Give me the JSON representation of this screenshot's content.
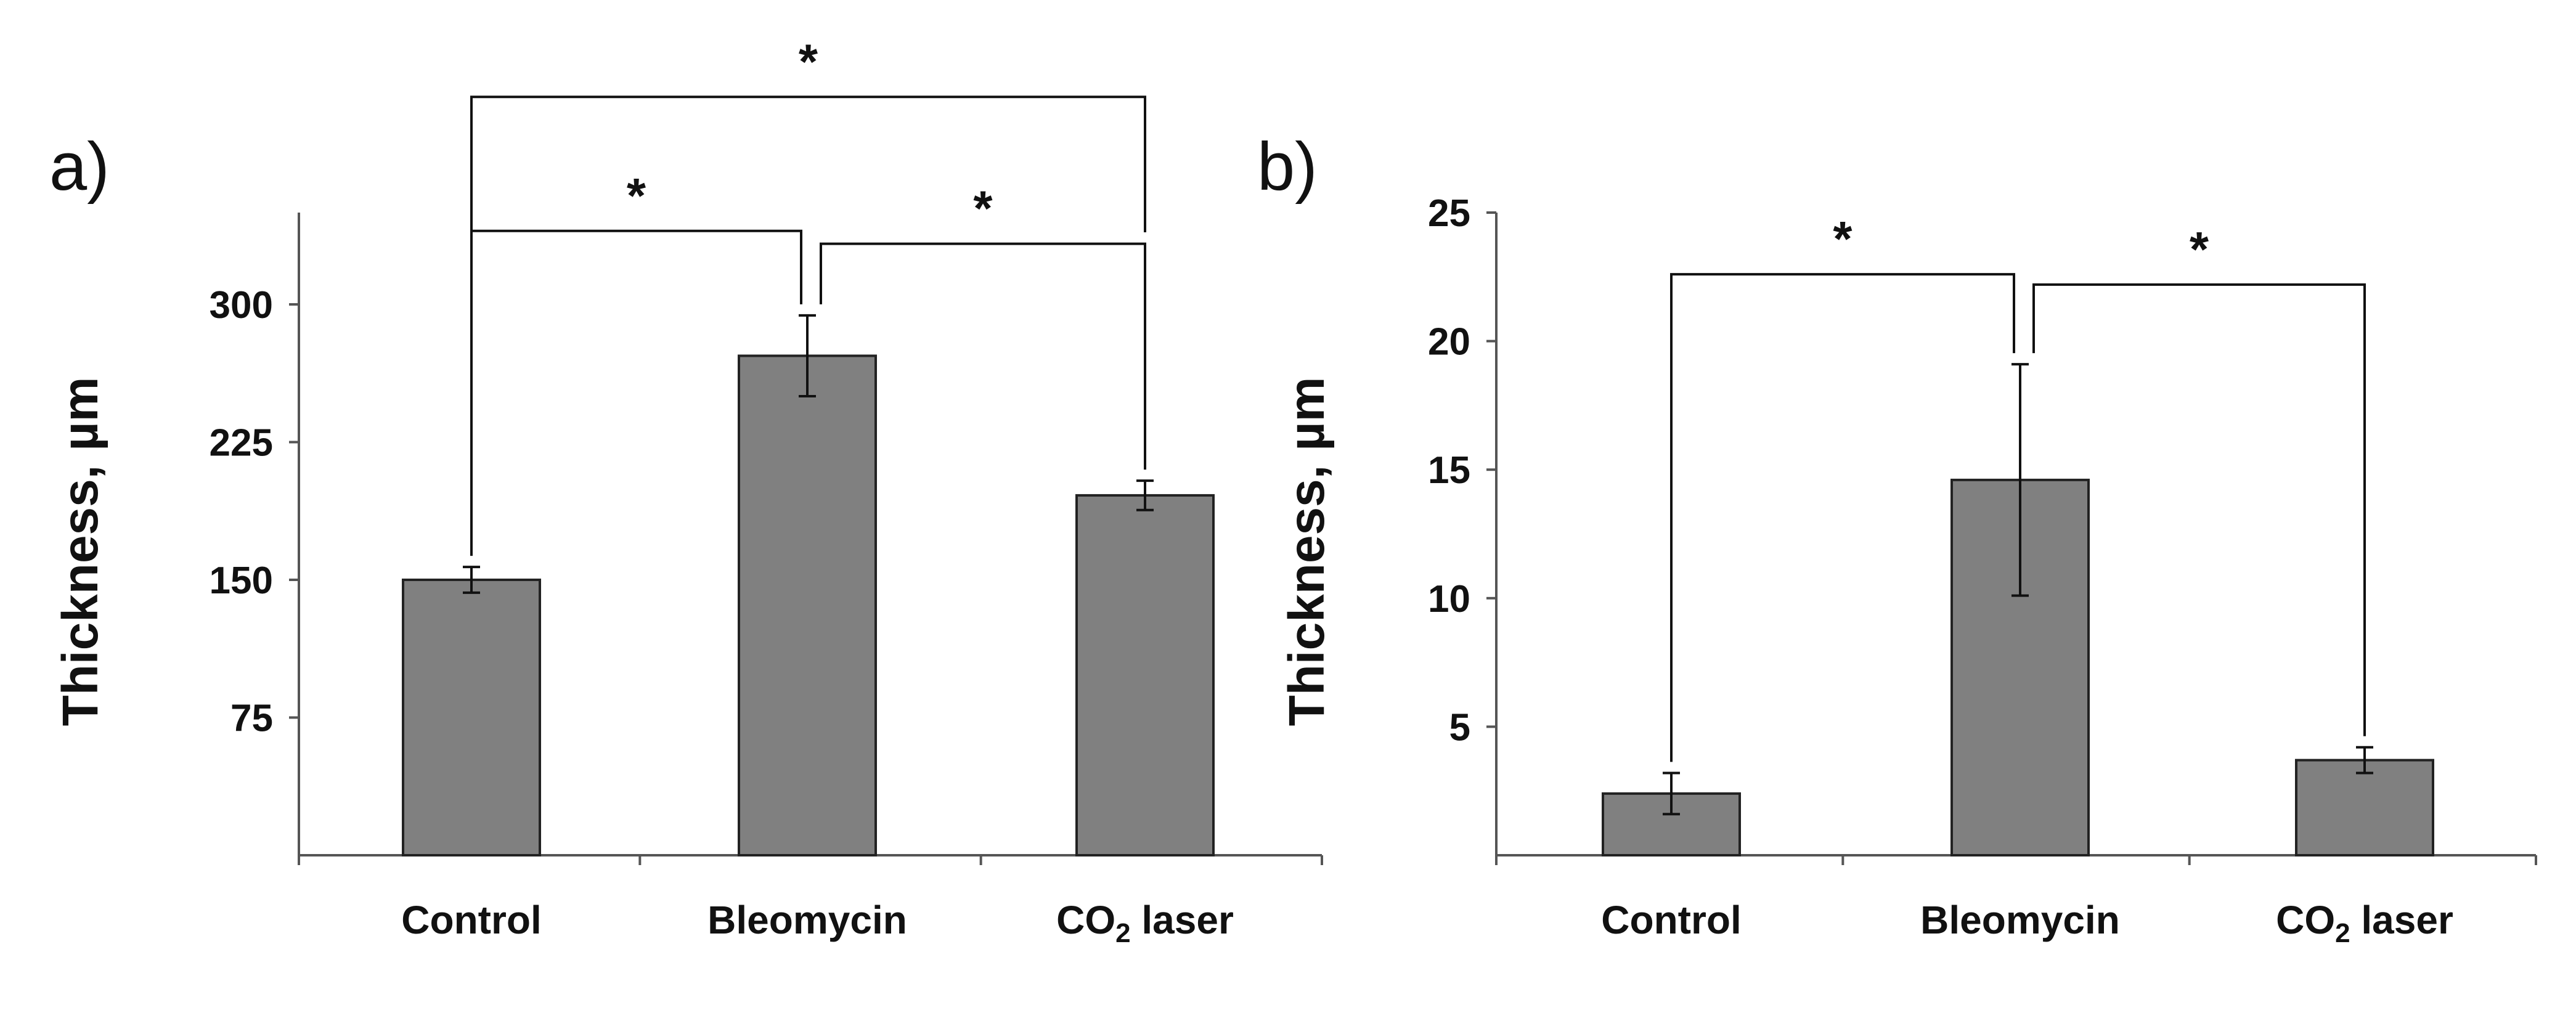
{
  "colors": {
    "bar": "#808080",
    "bar_stroke": "#222222",
    "axis": "#555555",
    "line": "#111111"
  },
  "chart_data": [
    {
      "type": "bar",
      "panel": "a)",
      "ylabel": "Thickness, µm",
      "categories": [
        {
          "main": "Control",
          "sub": "",
          "tail": ""
        },
        {
          "main": "Bleomycin",
          "sub": "",
          "tail": ""
        },
        {
          "main": "CO",
          "sub": "2",
          "tail": " laser"
        }
      ],
      "values": [
        150,
        272,
        196
      ],
      "errors": [
        7,
        22,
        8
      ],
      "ylim": [
        0,
        350
      ],
      "yticks": [
        75,
        150,
        225,
        300
      ],
      "significance": [
        {
          "from": 0,
          "to": 1,
          "label": "*",
          "level": 340
        },
        {
          "from": 1,
          "to": 2,
          "label": "*",
          "level": 333
        },
        {
          "from": 0,
          "to": 2,
          "label": "*",
          "level": 413
        }
      ]
    },
    {
      "type": "bar",
      "panel": "b)",
      "ylabel": "Thickness, µm",
      "categories": [
        {
          "main": "Control",
          "sub": "",
          "tail": ""
        },
        {
          "main": "Bleomycin",
          "sub": "",
          "tail": ""
        },
        {
          "main": "CO",
          "sub": "2",
          "tail": " laser"
        }
      ],
      "values": [
        2.4,
        14.6,
        3.7
      ],
      "errors": [
        0.8,
        4.5,
        0.5
      ],
      "ylim": [
        0,
        25
      ],
      "yticks": [
        5,
        10,
        15,
        20,
        25
      ],
      "significance": [
        {
          "from": 0,
          "to": 1,
          "label": "*",
          "level": 22.6
        },
        {
          "from": 1,
          "to": 2,
          "label": "*",
          "level": 22.2
        }
      ]
    }
  ]
}
